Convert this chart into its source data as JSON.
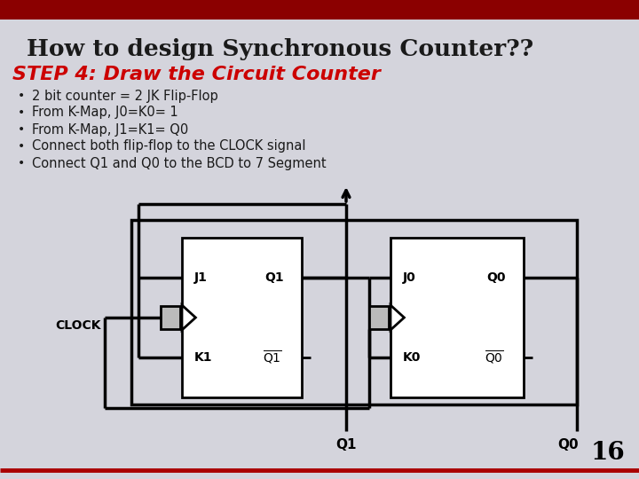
{
  "title": "How to design Synchronous Counter??",
  "subtitle": "STEP 4: Draw the Circuit Counter",
  "bullets": [
    "2 bit counter = 2 JK Flip-Flop",
    "From K-Map, J0=K0= 1",
    "From K-Map, J1=K1= Q0",
    "Connect both flip-flop to the CLOCK signal",
    "Connect Q1 and Q0 to the BCD to 7 Segment"
  ],
  "bg_color": "#d4d4dc",
  "header_bar_color": "#8b0000",
  "title_color": "#1a1a1a",
  "subtitle_color": "#cc0000",
  "bullet_color": "#1a1a1a",
  "slide_number": "16",
  "bottom_line_color": "#aa0000",
  "circuit_line_color": "#111111",
  "ff_bg": "#ffffff",
  "clk_rect_color": "#bbbbbb"
}
